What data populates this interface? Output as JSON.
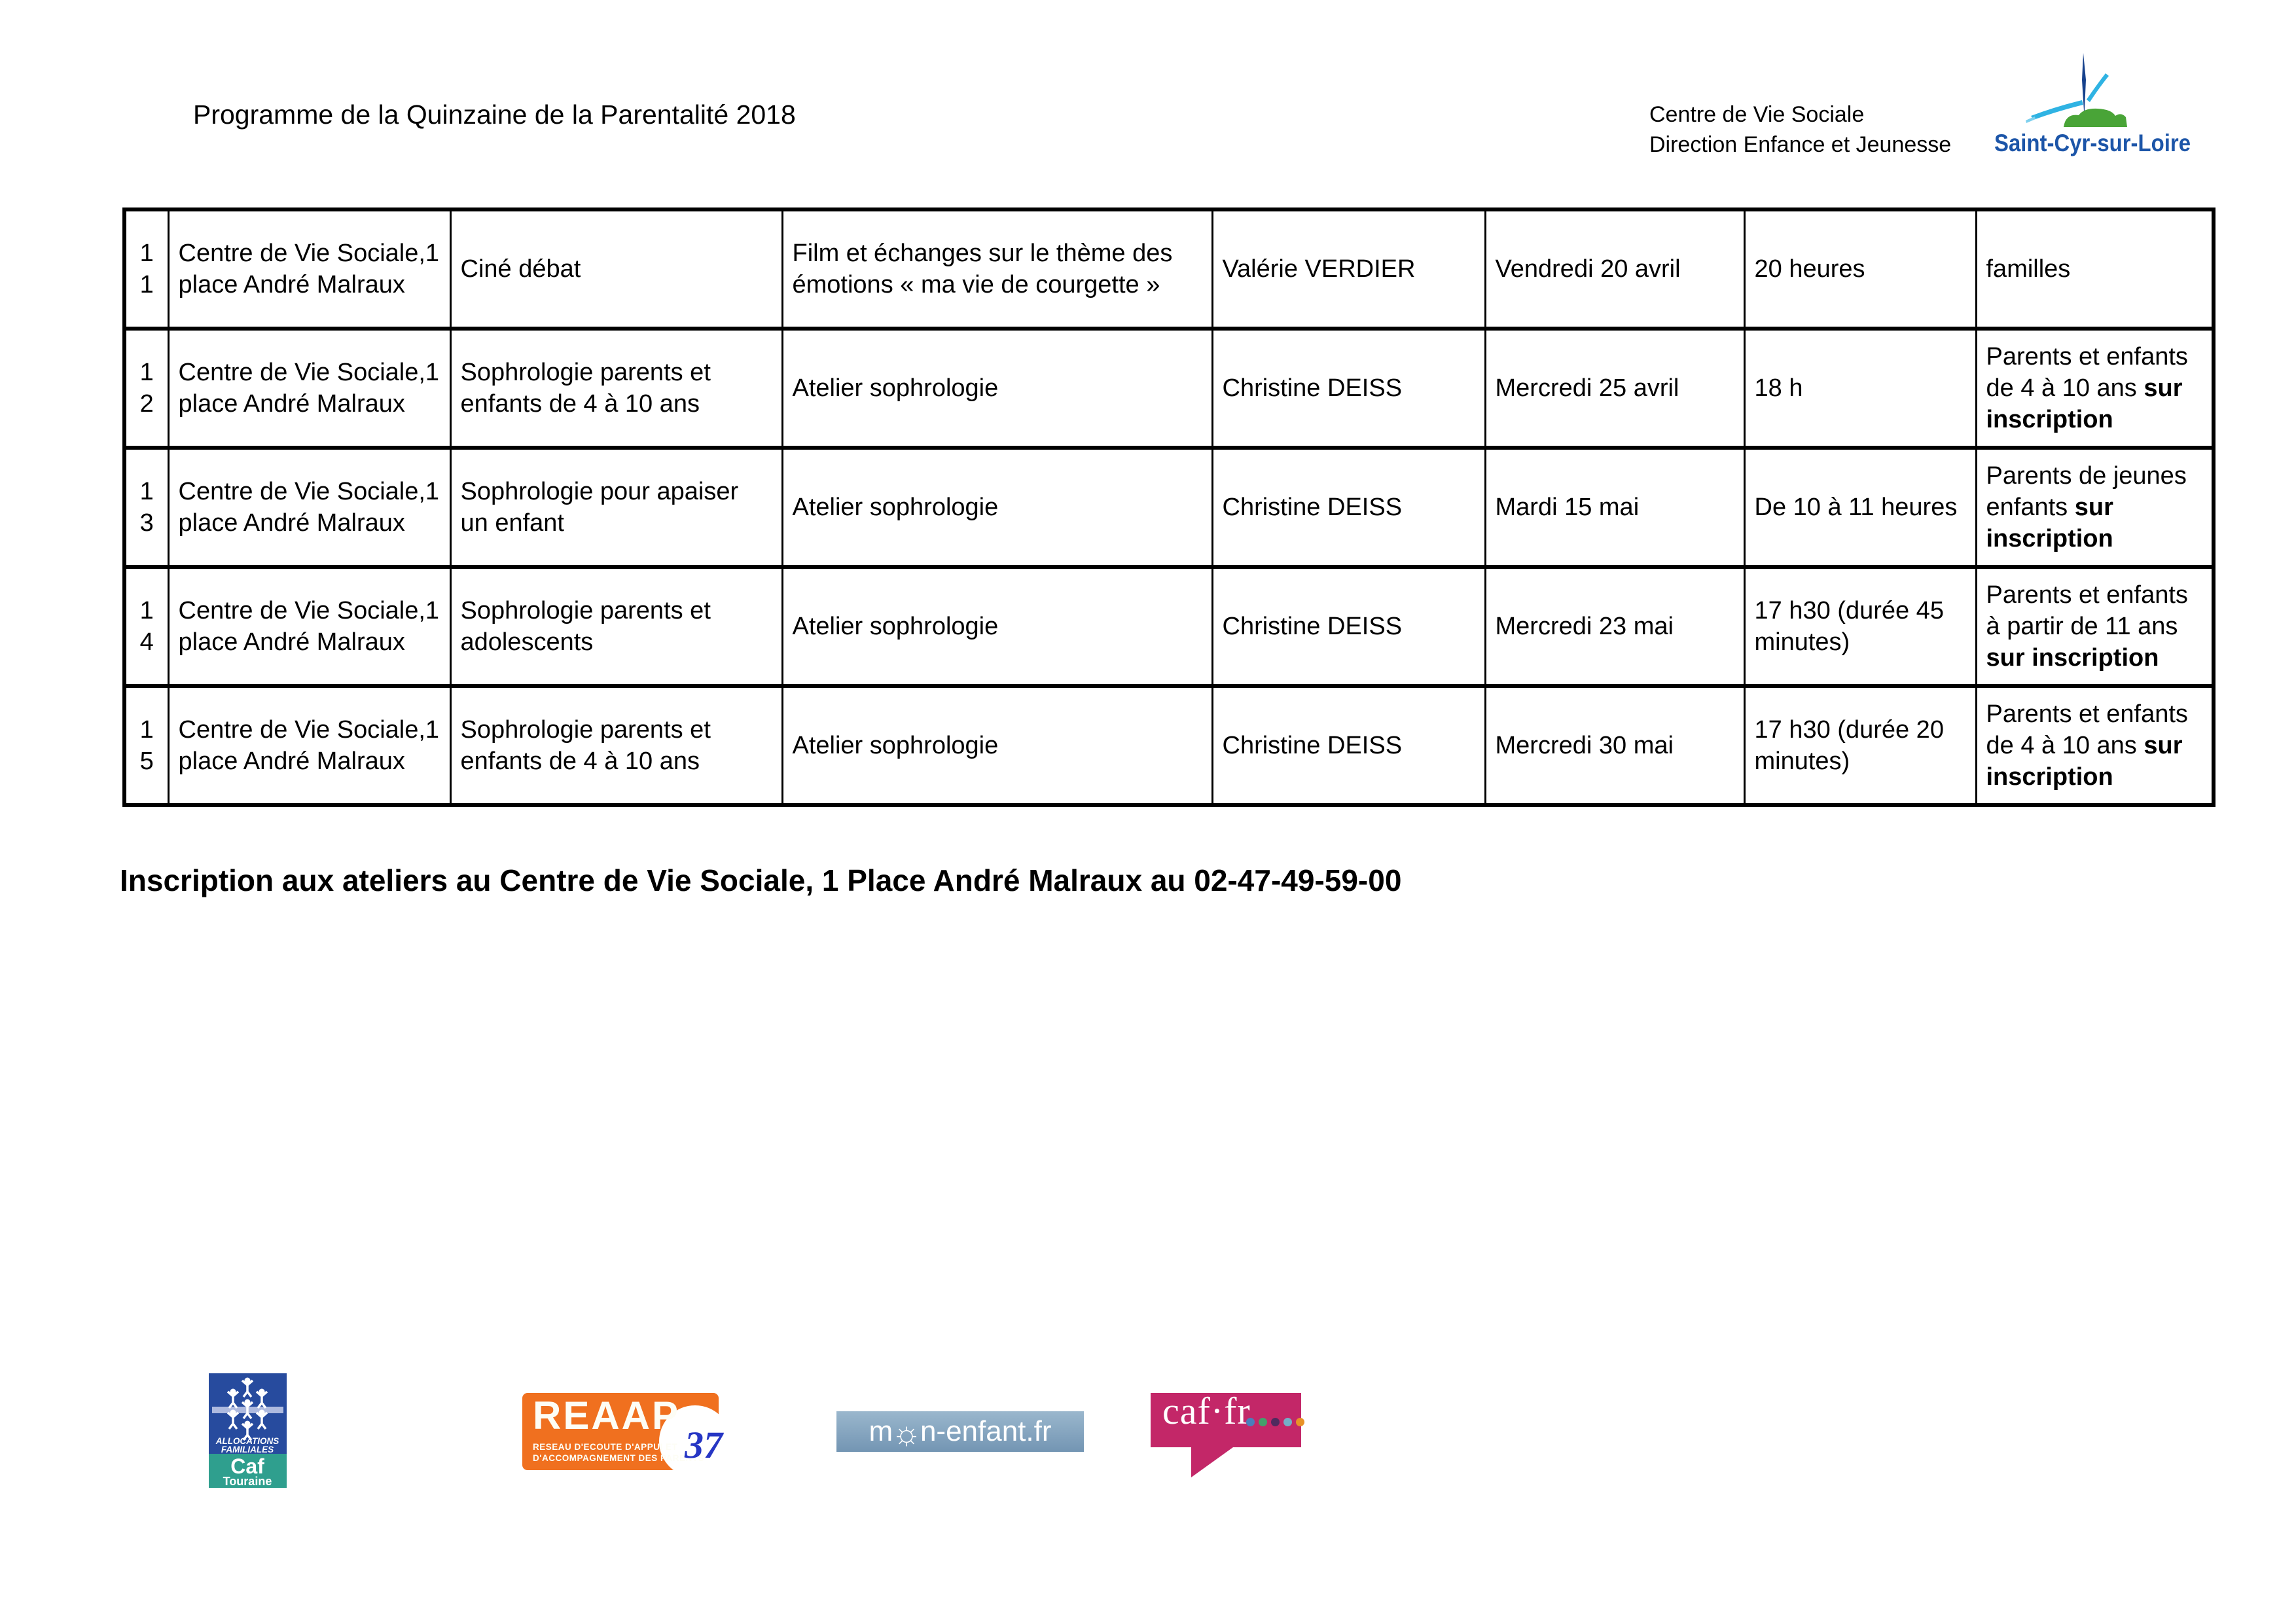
{
  "header": {
    "title": "Programme de la Quinzaine de la Parentalité 2018",
    "org_line1": "Centre de Vie Sociale",
    "org_line2": "Direction Enfance et Jeunesse",
    "city_logo_text": "Saint-Cyr-sur-Loire",
    "city_logo_colors": {
      "steeple_blue": "#16418c",
      "swoosh_blue": "#2fb3e3",
      "hill_green": "#49a437",
      "text_blue": "#1c55a8"
    }
  },
  "table": {
    "rows": [
      {
        "num": [
          "1",
          "1"
        ],
        "location": "Centre de Vie Sociale,1 place André Malraux",
        "activity": "Ciné débat",
        "description": "Film et échanges sur le thème des émotions « ma vie de courgette »",
        "speaker": "Valérie VERDIER",
        "date": "Vendredi 20 avril",
        "time": "20 heures",
        "audience": [
          {
            "text": "familles",
            "bold": false
          }
        ]
      },
      {
        "num": [
          "1",
          "2"
        ],
        "location": "Centre de Vie Sociale,1 place André Malraux",
        "activity": "Sophrologie parents et enfants de 4 à 10 ans",
        "description": "Atelier sophrologie",
        "speaker": "Christine DEISS",
        "date": "Mercredi 25 avril",
        "time": "18 h",
        "audience": [
          {
            "text": "Parents et enfants de 4 à 10 ans ",
            "bold": false
          },
          {
            "text": "sur inscription",
            "bold": true
          }
        ]
      },
      {
        "num": [
          "1",
          "3"
        ],
        "location": "Centre de Vie Sociale,1 place André Malraux",
        "activity": "Sophrologie pour apaiser un enfant",
        "description": "Atelier sophrologie",
        "speaker": "Christine DEISS",
        "date": "Mardi 15 mai",
        "time": "De 10 à 11 heures",
        "audience": [
          {
            "text": "Parents de jeunes enfants ",
            "bold": false
          },
          {
            "text": "sur inscription",
            "bold": true
          }
        ]
      },
      {
        "num": [
          "1",
          "4"
        ],
        "location": "Centre de Vie Sociale,1 place André Malraux",
        "activity": "Sophrologie parents et adolescents",
        "description": "Atelier sophrologie",
        "speaker": "Christine DEISS",
        "date": "Mercredi 23 mai",
        "time": "17 h30 (durée 45 minutes)",
        "audience": [
          {
            "text": "Parents et enfants à partir de 11 ans ",
            "bold": false
          },
          {
            "text": "sur inscription",
            "bold": true
          }
        ]
      },
      {
        "num": [
          "1",
          "5"
        ],
        "location": "Centre de Vie Sociale,1 place André Malraux",
        "activity": "Sophrologie parents et enfants de 4 à 10 ans",
        "description": "Atelier sophrologie",
        "speaker": "Christine DEISS",
        "date": "Mercredi 30 mai",
        "time": "17 h30 (durée 20 minutes)",
        "audience": [
          {
            "text": "Parents et enfants de 4 à 10 ans ",
            "bold": false
          },
          {
            "text": "sur inscription",
            "bold": true
          }
        ]
      }
    ]
  },
  "inscription_note": "Inscription aux ateliers au Centre de Vie Sociale, 1 Place André Malraux au 02-47-49-59-00",
  "footer_logos": {
    "caf_touraine": {
      "line1": "ALLOCATIONS",
      "line2": "FAMILIALES",
      "name": "Caf",
      "region": "Touraine",
      "blue": "#274b9e",
      "teal": "#2f9f8e",
      "bar": "#aebadf"
    },
    "reaap": {
      "name": "REAAP",
      "subtitle1": "RESEAU D'ECOUTE D'APPUI ET",
      "subtitle2": "D'ACCOMPAGNEMENT DES PARENTS",
      "number": "37",
      "orange": "#f0701f",
      "number_blue": "#2636c4"
    },
    "mon_enfant": {
      "text_before": "m",
      "text_after": "n-enfant.fr",
      "sun": "☼",
      "bg": "#86a8c3"
    },
    "caf_fr": {
      "text": "caf·fr",
      "bg": "#c32768",
      "dot_colors": [
        "#4a7ebb",
        "#44a06b",
        "#4f2a5e",
        "#74aec7",
        "#e89227"
      ]
    }
  }
}
